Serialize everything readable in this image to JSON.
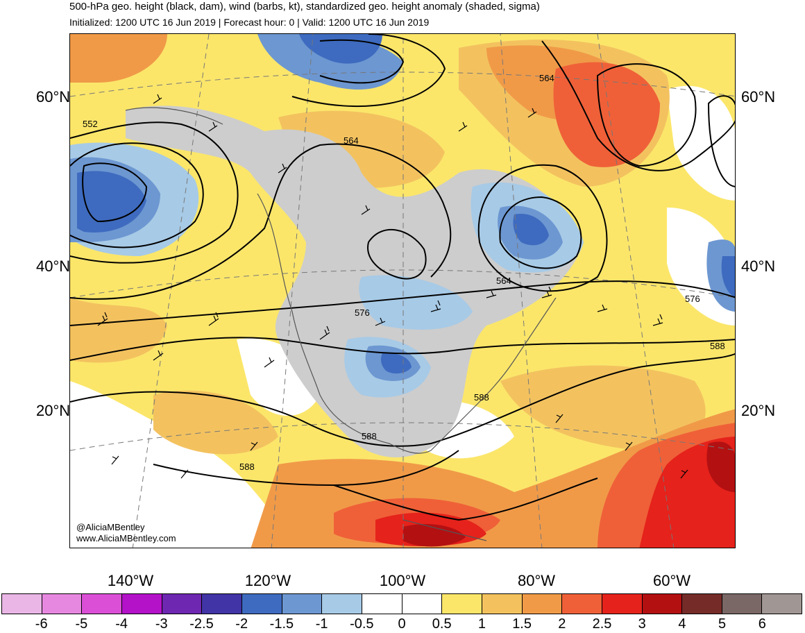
{
  "header": {
    "title": "500-hPa geo. height (black, dam), wind (barbs, kt), standardized geo. height anomaly (shaded, sigma)",
    "subtitle": "Initialized: 1200 UTC 16 Jun 2019 | Forecast hour: 0 | Valid: 1200 UTC 16 Jun 2019"
  },
  "map": {
    "lat_labels": [
      "60°N",
      "40°N",
      "20°N"
    ],
    "lon_labels": [
      "140°W",
      "120°W",
      "100°W",
      "80°W",
      "60°W"
    ],
    "contour_labels": [
      "552",
      "564",
      "564",
      "564",
      "576",
      "576",
      "588",
      "588",
      "588",
      "588"
    ],
    "credits": [
      "@AliciaMBentley",
      "www.AliciaMBentley.com"
    ]
  },
  "colorbar": {
    "colors": [
      "#eab6e6",
      "#e688e0",
      "#da4fd6",
      "#b312c9",
      "#6d27b0",
      "#4134a6",
      "#3e6bbf",
      "#6d97d1",
      "#a7cae6",
      "#ffffff",
      "#ffffff",
      "#fbe66a",
      "#f3c25f",
      "#f09a48",
      "#ef6038",
      "#e5221b",
      "#b31012",
      "#752c29",
      "#7a6866",
      "#a09694"
    ],
    "ticks": [
      "-6",
      "-5",
      "-4",
      "-3",
      "-2.5",
      "-2",
      "-1.5",
      "-1",
      "-0.5",
      "0",
      "0.5",
      "1",
      "1.5",
      "2",
      "2.5",
      "3",
      "4",
      "5",
      "6"
    ]
  }
}
